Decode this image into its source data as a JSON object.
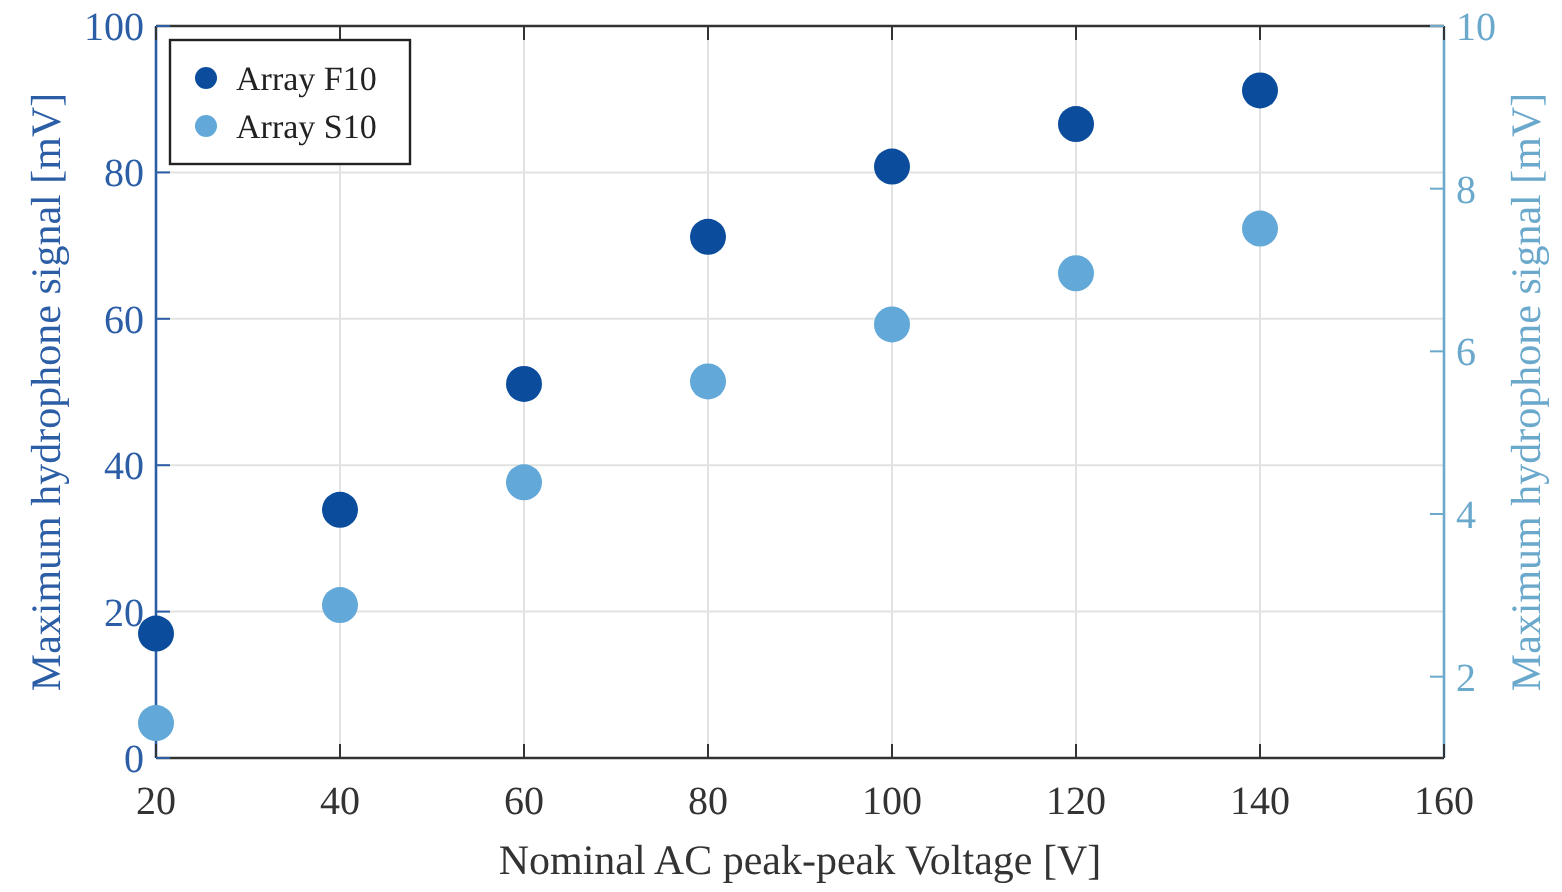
{
  "chart_data": {
    "type": "scatter",
    "xlabel": "Nominal AC peak-peak Voltage [V]",
    "ylabel": "Maximum hydrophone signal [mV]",
    "y2label": "Maximum hydrophone signal [mV]",
    "x": [
      20,
      40,
      60,
      80,
      100,
      120,
      140
    ],
    "series": [
      {
        "name": "Array F10",
        "color": "#0b4d9c",
        "values": [
          17.0,
          33.9,
          51.1,
          71.2,
          80.8,
          86.6,
          91.2
        ]
      },
      {
        "name": "Array S10",
        "color": "#62a8d8",
        "axis": "y2",
        "values": [
          1.43,
          2.88,
          4.39,
          5.63,
          6.33,
          6.96,
          7.51
        ]
      }
    ],
    "xlim": [
      20,
      160
    ],
    "xticks": [
      20,
      40,
      60,
      80,
      100,
      120,
      140,
      160
    ],
    "ylim": [
      0,
      100
    ],
    "yticks": [
      0,
      20,
      40,
      60,
      80,
      100
    ],
    "y2lim": [
      1,
      10
    ],
    "y2ticks": [
      2,
      4,
      6,
      8,
      10
    ],
    "grid": true,
    "legend": "top left",
    "marker": "circle"
  }
}
